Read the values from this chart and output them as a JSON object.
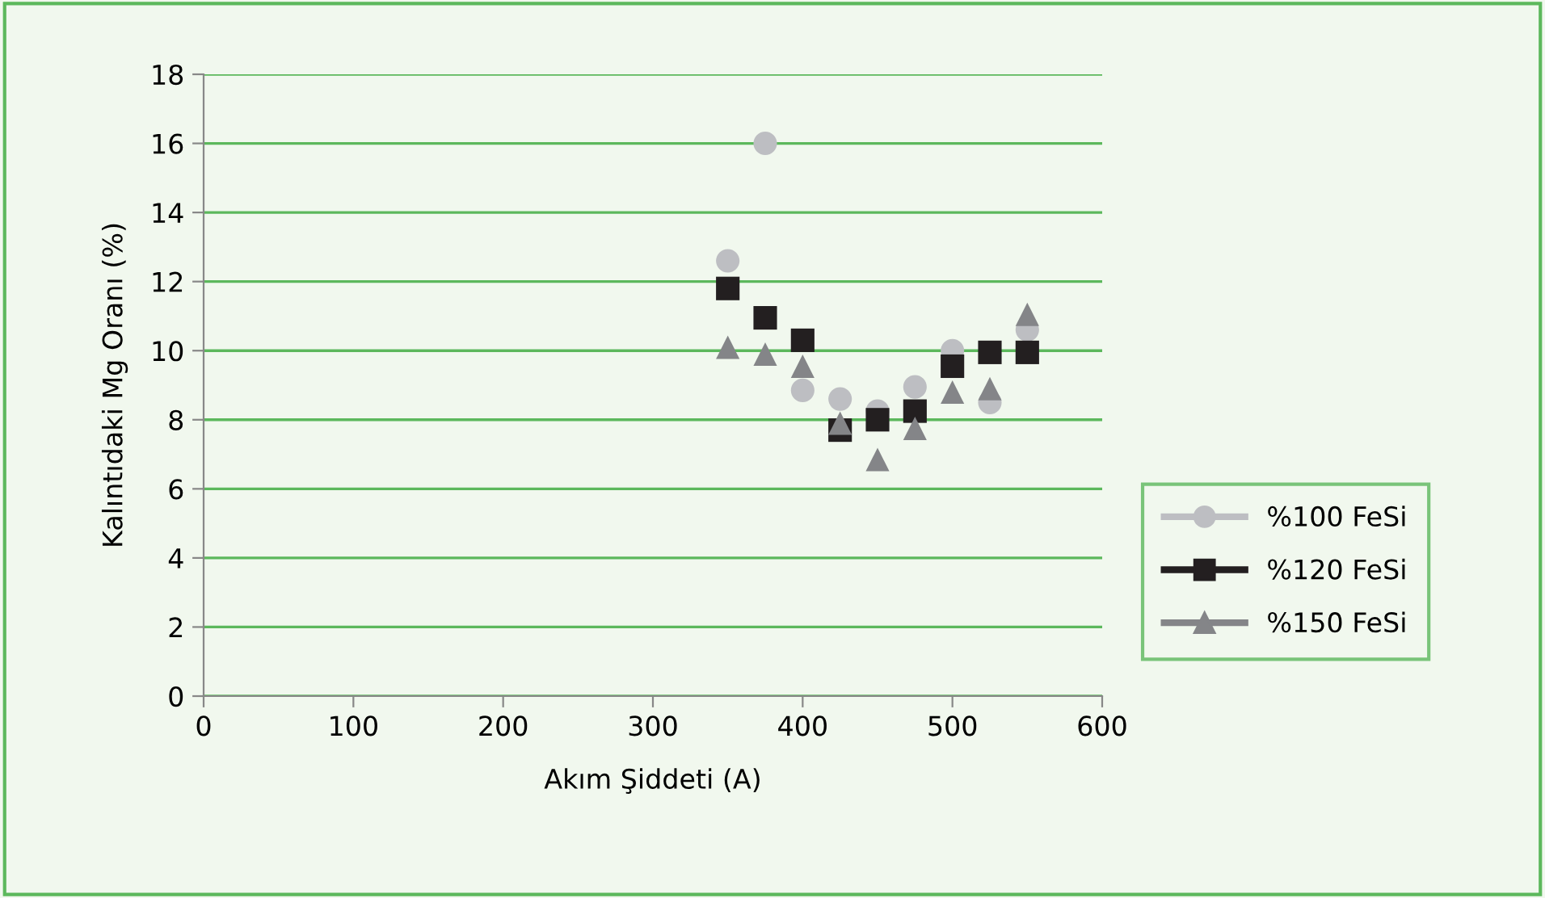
{
  "chart_data": {
    "type": "scatter",
    "xlabel": "Akım Şiddeti (A)",
    "ylabel": "Kalıntıdaki Mg Oranı (%)",
    "x": [
      350,
      375,
      400,
      425,
      450,
      475,
      500,
      525,
      550
    ],
    "series": [
      {
        "name": "%100 FeSi",
        "color": "#bdbec2",
        "marker": "circle",
        "values": [
          12.6,
          16.0,
          8.85,
          8.6,
          8.25,
          8.95,
          10.0,
          8.5,
          10.6
        ]
      },
      {
        "name": "%120 FeSi",
        "color": "#231f20",
        "marker": "square",
        "values": [
          11.8,
          10.95,
          10.3,
          7.7,
          8.0,
          8.25,
          9.55,
          9.95,
          9.95
        ]
      },
      {
        "name": "%150 FeSi",
        "color": "#848588",
        "marker": "triangle",
        "values": [
          10.1,
          9.9,
          9.55,
          7.9,
          6.85,
          7.75,
          8.8,
          8.9,
          11.05
        ]
      }
    ],
    "xlim": [
      0,
      600
    ],
    "xticks": [
      0,
      100,
      200,
      300,
      400,
      500,
      600
    ],
    "ylim": [
      0,
      18
    ],
    "yticks": [
      0,
      2,
      4,
      6,
      8,
      10,
      12,
      14,
      16,
      18
    ],
    "grid": "y",
    "legend": "right"
  }
}
